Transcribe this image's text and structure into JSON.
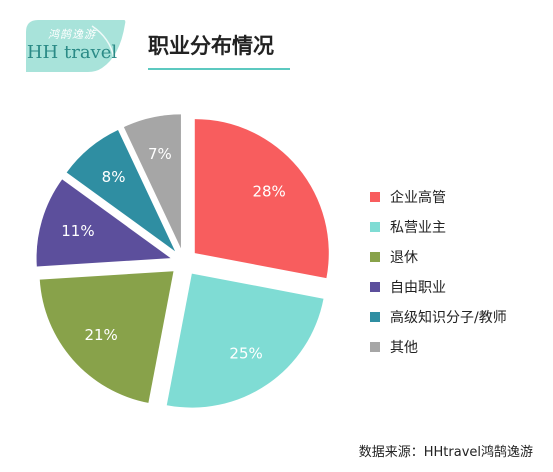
{
  "logo": {
    "script_text": "鸿鹄逸游",
    "brand_text": "HH travel",
    "color": "#a8e3da"
  },
  "header": {
    "title": "职业分布情况",
    "rule_color": "#5cc9c0"
  },
  "chart_data": {
    "type": "pie",
    "title": "职业分布情况",
    "categories": [
      "企业高管",
      "私营业主",
      "退休",
      "自由职业",
      "高级知识分子/教师",
      "其他"
    ],
    "values": [
      28,
      25,
      21,
      11,
      8,
      7
    ],
    "labels": [
      "28%",
      "25%",
      "21%",
      "11%",
      "8%",
      "7%"
    ],
    "colors": [
      "#f85d5e",
      "#7fdcd4",
      "#88a24a",
      "#5c4f9c",
      "#2f8ea2",
      "#a6a6a6"
    ],
    "exploded": true,
    "start": "12 o'clock",
    "direction": "clockwise",
    "legend_position": "right"
  },
  "footer": {
    "source": "数据来源：HHtravel鸿鹄逸游"
  }
}
